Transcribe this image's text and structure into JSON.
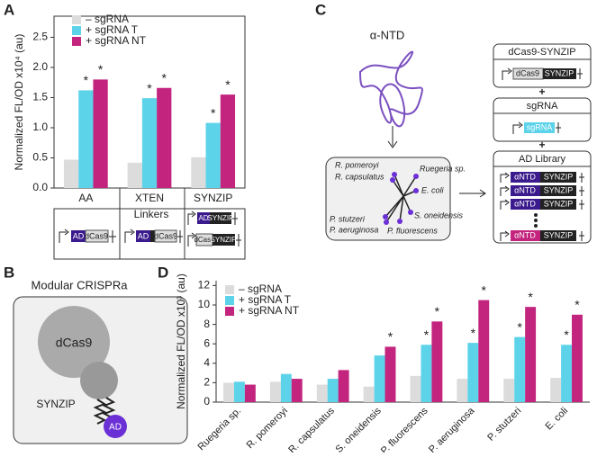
{
  "panels": {
    "a": {
      "letter": "A",
      "constructs": {
        "linkers": "Linkers",
        "ad": "AD",
        "dcas9": "dCas9",
        "synzip": "SYNZIP"
      }
    },
    "b": {
      "letter": "B",
      "title": "Modular CRISPRa",
      "dcas9": "dCas9",
      "synzip": "SYNZIP",
      "ad": "AD"
    },
    "c": {
      "letter": "C",
      "protein": "α-NTD",
      "species": [
        "Ruegeria sp.",
        "R. pomeroyi",
        "R. capsulatus",
        "E. coli",
        "S. oneidensis",
        "P. stutzeri",
        "P. aeruginosa",
        "P. fluorescens"
      ],
      "boxes": {
        "dcas9_synzip": "dCas9-SYNZIP",
        "dcas9": "dCas9",
        "synzip": "SYNZIP",
        "plus": "+",
        "sgrna": "sgRNA",
        "ad_library": "AD Library",
        "antd": "αNTD"
      }
    },
    "d": {
      "letter": "D"
    }
  },
  "chart_data": [
    {
      "type": "bar",
      "y_label": "Normalized FL/OD x10⁴ (au)",
      "categories": [
        "AA",
        "XTEN",
        "SYNZIP"
      ],
      "series": [
        {
          "name": "– sgRNA",
          "color": "#dcdcdc",
          "values": [
            0.47,
            0.42,
            0.51
          ]
        },
        {
          "name": "+ sgRNA T",
          "color": "#5dd3ea",
          "values": [
            1.62,
            1.49,
            1.08
          ],
          "markers": [
            "*",
            "*",
            "*"
          ]
        },
        {
          "name": "+ sgRNA NT",
          "color": "#c2247e",
          "values": [
            1.8,
            1.66,
            1.55
          ],
          "markers": [
            "*",
            "*",
            "*"
          ]
        }
      ],
      "ylim": [
        0,
        2.85
      ],
      "yticks": [
        {
          "value": 0,
          "label": "0.0"
        },
        0.5,
        {
          "value": 1,
          "label": "1.0"
        },
        1.5,
        {
          "value": 2,
          "label": "2.0"
        },
        2.5
      ],
      "legend": "upper left"
    },
    {
      "type": "bar",
      "y_label": "Normalized FL/OD x10³ (au)",
      "categories": [
        "Ruegeria sp.",
        "R. pomeroyi",
        "R. capsulatus",
        "S. oneidensis",
        "P. fluorescens",
        "P. aeruginosa",
        "P. stutzeri",
        "E. coli"
      ],
      "series": [
        {
          "name": "– sgRNA",
          "color": "#dcdcdc",
          "values": [
            2.0,
            2.1,
            1.8,
            1.6,
            2.7,
            2.4,
            2.4,
            2.5
          ]
        },
        {
          "name": "+ sgRNA T",
          "color": "#5dd3ea",
          "values": [
            2.1,
            2.9,
            2.4,
            4.8,
            5.9,
            6.1,
            6.7,
            5.9
          ],
          "markers": [
            null,
            null,
            null,
            null,
            "*",
            "*",
            "*",
            "*"
          ]
        },
        {
          "name": "+ sgRNA NT",
          "color": "#c2247e",
          "values": [
            1.8,
            2.4,
            3.3,
            5.7,
            8.3,
            10.5,
            9.8,
            9.0
          ],
          "markers": [
            null,
            null,
            null,
            "*",
            "*",
            "*",
            "*",
            "*"
          ]
        }
      ],
      "ylim": [
        0,
        12.5
      ],
      "yticks": [
        0,
        2,
        4,
        6,
        8,
        10,
        12
      ],
      "legend": "upper left"
    }
  ]
}
